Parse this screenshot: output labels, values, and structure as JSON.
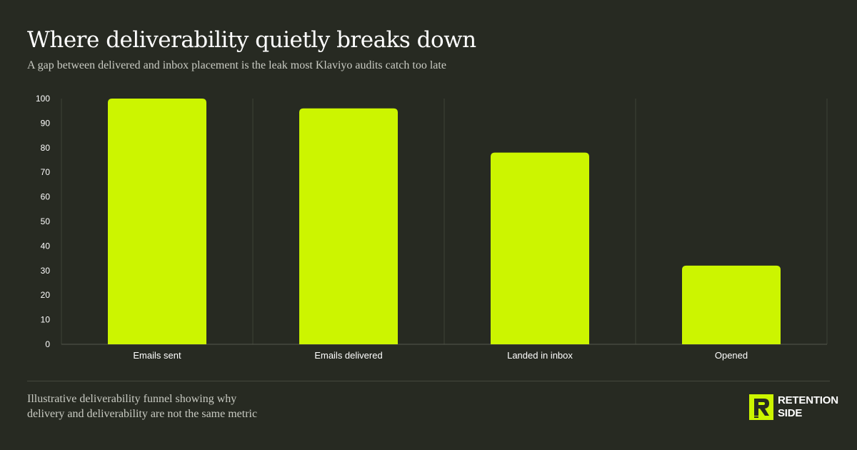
{
  "header": {
    "title": "Where deliverability quietly breaks down",
    "subtitle": "A gap between delivered and inbox placement is the leak most Klaviyo audits catch too late"
  },
  "footer": {
    "note_lines": [
      "Illustrative deliverability funnel showing why",
      "delivery and deliverability are not the same metric"
    ],
    "brand_lines": [
      "RETENTION",
      "SIDE"
    ]
  },
  "colors": {
    "background": "#272a22",
    "bar": "#ccf500",
    "grid": "#3e4137",
    "axis_text": "#ffffff"
  },
  "chart_data": {
    "type": "bar",
    "categories": [
      "Emails sent",
      "Emails delivered",
      "Landed in inbox",
      "Opened"
    ],
    "values": [
      100,
      96,
      78,
      32
    ],
    "title": "Where deliverability quietly breaks down",
    "subtitle": "A gap between delivered and inbox placement is the leak most Klaviyo audits catch too late",
    "xlabel": "",
    "ylabel": "",
    "ylim": [
      0,
      100
    ],
    "yticks": [
      0,
      10,
      20,
      30,
      40,
      50,
      60,
      70,
      80,
      90,
      100
    ],
    "grid": "vertical separators between categories",
    "legend": "none"
  }
}
